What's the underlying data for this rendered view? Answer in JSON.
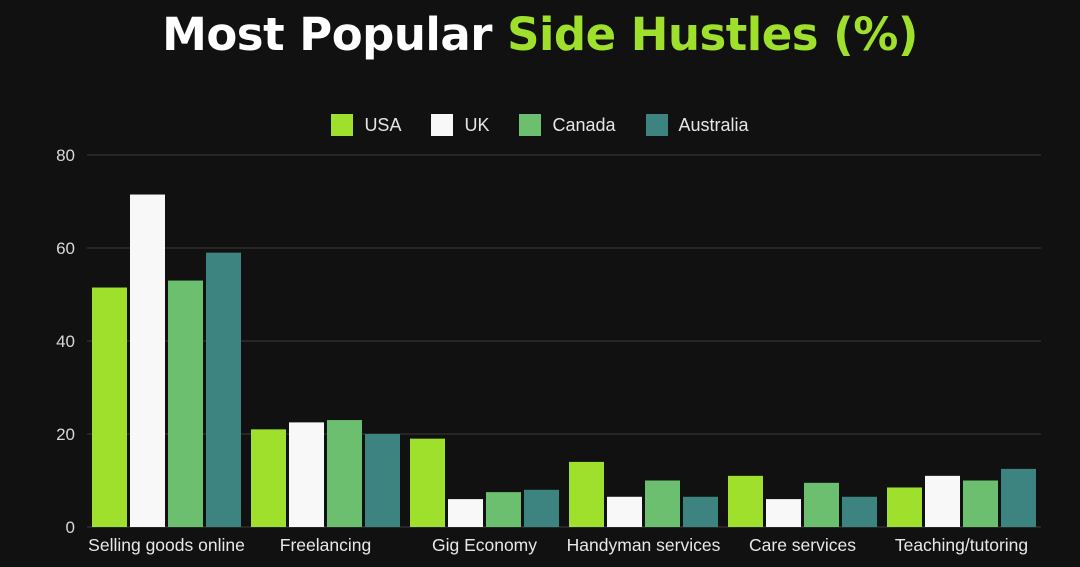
{
  "title": {
    "part1": "Most Popular",
    "part2": "Side Hustles (%)"
  },
  "colors": {
    "background": "#111111",
    "accent": "#9fe02c",
    "usa": "#9fe02c",
    "uk": "#f8f8f8",
    "canada": "#6cbf6e",
    "australia": "#3d8480",
    "gridline": "#3a3a3a"
  },
  "chart_data": {
    "type": "bar",
    "title": "Most Popular Side Hustles (%)",
    "categories": [
      "Selling goods online",
      "Freelancing",
      "Gig Economy",
      "Handyman services",
      "Care services",
      "Teaching/tutoring"
    ],
    "series": [
      {
        "name": "USA",
        "color": "#9fe02c",
        "values": [
          51.5,
          21,
          19,
          14,
          11,
          8.5
        ]
      },
      {
        "name": "UK",
        "color": "#f8f8f8",
        "values": [
          71.5,
          22.5,
          6,
          6.5,
          6,
          11
        ]
      },
      {
        "name": "Canada",
        "color": "#6cbf6e",
        "values": [
          53,
          23,
          7.5,
          10,
          9.5,
          10
        ]
      },
      {
        "name": "Australia",
        "color": "#3d8480",
        "values": [
          59,
          20,
          8,
          6.5,
          6.5,
          12.5
        ]
      }
    ],
    "yticks": [
      0,
      20,
      40,
      60,
      80
    ],
    "ylim": [
      0,
      80
    ],
    "xlabel": "",
    "ylabel": "",
    "grid": true,
    "legend_position": "top-center"
  }
}
